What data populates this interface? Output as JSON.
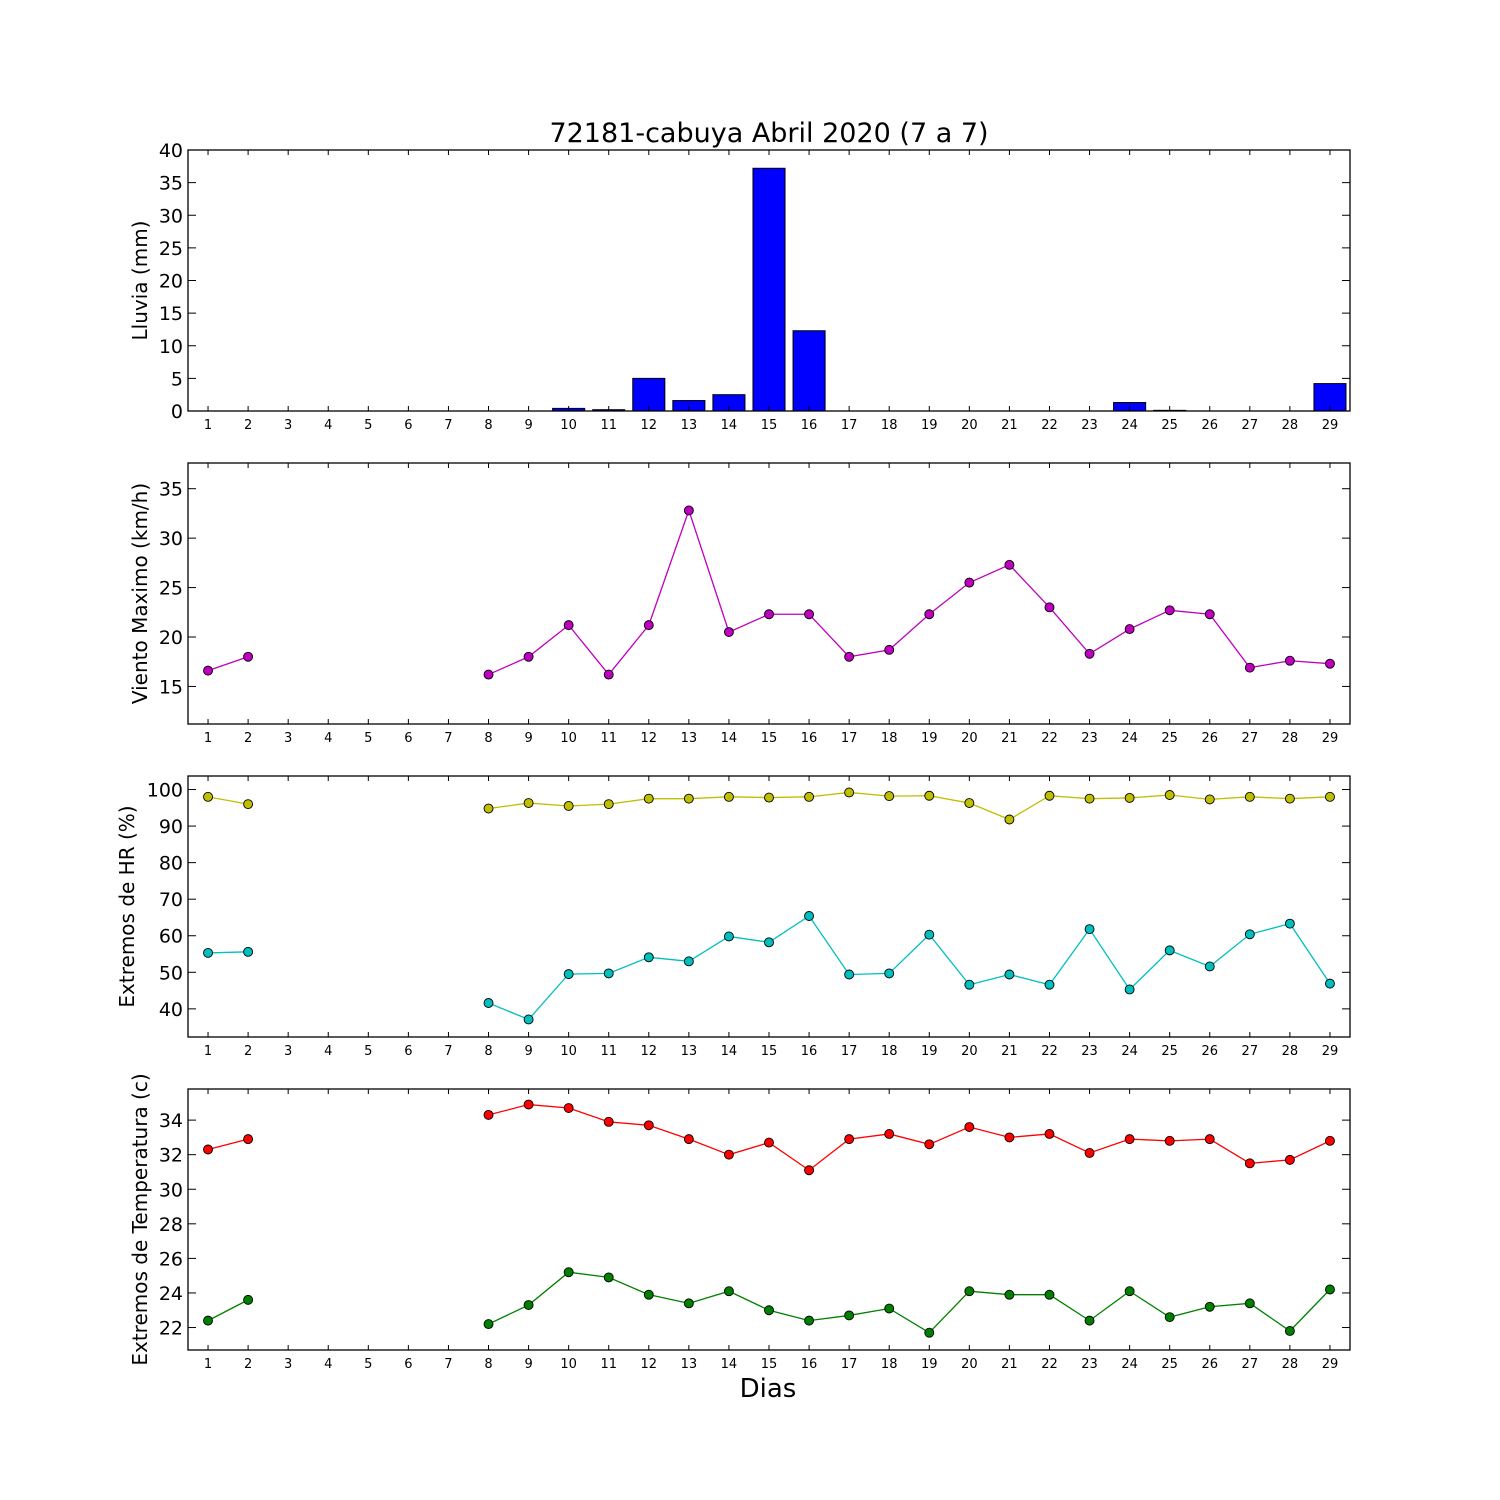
{
  "chart_data": [
    {
      "type": "bar",
      "title": "72181-cabuya Abril 2020  (7 a 7)",
      "ylabel": "Lluvia (mm)",
      "xlabel": "",
      "x": [
        1,
        2,
        3,
        4,
        5,
        6,
        7,
        8,
        9,
        10,
        11,
        12,
        13,
        14,
        15,
        16,
        17,
        18,
        19,
        20,
        21,
        22,
        23,
        24,
        25,
        26,
        27,
        28,
        29
      ],
      "x_ticks": [
        "1",
        "2",
        "3",
        "4",
        "5",
        "6",
        "7",
        "8",
        "9",
        "10",
        "11",
        "12",
        "13",
        "14",
        "15",
        "16",
        "17",
        "18",
        "19",
        "20",
        "21",
        "22",
        "23",
        "24",
        "25",
        "26",
        "27",
        "28",
        "29"
      ],
      "values": [
        0,
        0,
        0,
        0,
        0,
        0,
        0,
        0,
        0,
        0.4,
        0.2,
        5.0,
        1.6,
        2.5,
        37.2,
        12.3,
        0,
        0,
        0,
        0,
        0,
        0,
        0,
        1.3,
        0.1,
        0,
        0,
        0,
        4.2
      ],
      "ylim": [
        0,
        40
      ],
      "y_ticks": [
        "0",
        "5",
        "10",
        "15",
        "20",
        "25",
        "30",
        "35",
        "40"
      ],
      "color": "#0000ff",
      "grid": false
    },
    {
      "type": "line",
      "title": "",
      "ylabel": "Viento Maximo (km/h)",
      "xlabel": "",
      "x": [
        1,
        2,
        3,
        4,
        5,
        6,
        7,
        8,
        9,
        10,
        11,
        12,
        13,
        14,
        15,
        16,
        17,
        18,
        19,
        20,
        21,
        22,
        23,
        24,
        25,
        26,
        27,
        28,
        29
      ],
      "x_ticks": [
        "1",
        "2",
        "3",
        "4",
        "5",
        "6",
        "7",
        "8",
        "9",
        "10",
        "11",
        "12",
        "13",
        "14",
        "15",
        "16",
        "17",
        "18",
        "19",
        "20",
        "21",
        "22",
        "23",
        "24",
        "25",
        "26",
        "27",
        "28",
        "29"
      ],
      "series": [
        {
          "color": "#bf00bf",
          "values": [
            16.6,
            18.0,
            null,
            null,
            null,
            null,
            null,
            16.2,
            18.0,
            21.2,
            16.2,
            21.2,
            32.8,
            20.5,
            22.3,
            22.3,
            18.0,
            18.7,
            22.3,
            25.5,
            27.3,
            23.0,
            18.3,
            20.8,
            22.7,
            22.3,
            16.9,
            17.6,
            17.3
          ]
        }
      ],
      "ylim": [
        11.2,
        37.6
      ],
      "y_ticks": [
        "15",
        "20",
        "25",
        "30",
        "35"
      ],
      "grid": false
    },
    {
      "type": "line",
      "title": "",
      "ylabel": "Extremos de HR (%)",
      "xlabel": "",
      "x": [
        1,
        2,
        3,
        4,
        5,
        6,
        7,
        8,
        9,
        10,
        11,
        12,
        13,
        14,
        15,
        16,
        17,
        18,
        19,
        20,
        21,
        22,
        23,
        24,
        25,
        26,
        27,
        28,
        29
      ],
      "x_ticks": [
        "1",
        "2",
        "3",
        "4",
        "5",
        "6",
        "7",
        "8",
        "9",
        "10",
        "11",
        "12",
        "13",
        "14",
        "15",
        "16",
        "17",
        "18",
        "19",
        "20",
        "21",
        "22",
        "23",
        "24",
        "25",
        "26",
        "27",
        "28",
        "29"
      ],
      "series": [
        {
          "color": "#bfbf00",
          "values": [
            98,
            96,
            null,
            null,
            null,
            null,
            null,
            94.8,
            96.3,
            95.5,
            96,
            97.5,
            97.5,
            98,
            97.8,
            98,
            99.2,
            98.2,
            98.3,
            96.3,
            91.8,
            98.3,
            97.5,
            97.7,
            98.5,
            97.3,
            98,
            97.5,
            98
          ]
        },
        {
          "color": "#00bfbf",
          "values": [
            55.3,
            55.6,
            null,
            null,
            null,
            null,
            null,
            41.6,
            37.1,
            49.5,
            49.7,
            54.1,
            53,
            59.8,
            58.2,
            65.4,
            49.4,
            49.7,
            60.3,
            46.6,
            49.4,
            46.6,
            61.8,
            45.3,
            56,
            51.6,
            60.4,
            63.3,
            46.9
          ]
        }
      ],
      "ylim": [
        32.3,
        103.7
      ],
      "y_ticks": [
        "40",
        "50",
        "60",
        "70",
        "80",
        "90",
        "100"
      ],
      "grid": false
    },
    {
      "type": "line",
      "title": "",
      "ylabel": "Extremos de Temperatura (c)",
      "xlabel": "Dias",
      "x": [
        1,
        2,
        3,
        4,
        5,
        6,
        7,
        8,
        9,
        10,
        11,
        12,
        13,
        14,
        15,
        16,
        17,
        18,
        19,
        20,
        21,
        22,
        23,
        24,
        25,
        26,
        27,
        28,
        29
      ],
      "x_ticks": [
        "1",
        "2",
        "3",
        "4",
        "5",
        "6",
        "7",
        "8",
        "9",
        "10",
        "11",
        "12",
        "13",
        "14",
        "15",
        "16",
        "17",
        "18",
        "19",
        "20",
        "21",
        "22",
        "23",
        "24",
        "25",
        "26",
        "27",
        "28",
        "29"
      ],
      "series": [
        {
          "color": "#ff0000",
          "values": [
            32.3,
            32.9,
            null,
            null,
            null,
            null,
            null,
            34.3,
            34.9,
            34.7,
            33.9,
            33.7,
            32.9,
            32.0,
            32.7,
            31.1,
            32.9,
            33.2,
            32.6,
            33.6,
            33.0,
            33.2,
            32.1,
            32.9,
            32.8,
            32.9,
            31.5,
            31.7,
            32.8
          ]
        },
        {
          "color": "#008000",
          "values": [
            22.4,
            23.6,
            null,
            null,
            null,
            null,
            null,
            22.2,
            23.3,
            25.2,
            24.9,
            23.9,
            23.4,
            24.1,
            23.0,
            22.4,
            22.7,
            23.1,
            21.7,
            24.1,
            23.9,
            23.9,
            22.4,
            24.1,
            22.6,
            23.2,
            23.4,
            21.8,
            24.2
          ]
        }
      ],
      "ylim": [
        20.7,
        35.8
      ],
      "y_ticks": [
        "22",
        "24",
        "26",
        "28",
        "30",
        "32",
        "34"
      ],
      "grid": false
    }
  ]
}
